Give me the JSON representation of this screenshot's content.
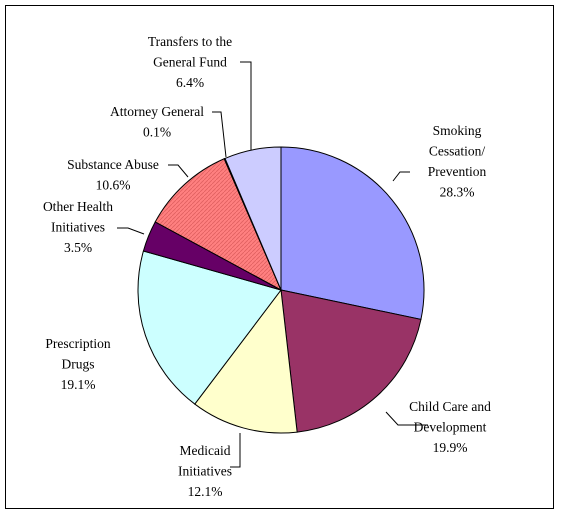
{
  "chart_data": {
    "type": "pie",
    "title": "",
    "slices": [
      {
        "id": "smoking",
        "lines": [
          "Smoking",
          "Cessation/",
          "Prevention"
        ],
        "pct_label": "28.3%",
        "value": 28.3,
        "color": "#9999ff",
        "hatch": false
      },
      {
        "id": "childcare",
        "lines": [
          "Child Care and",
          "Development"
        ],
        "pct_label": "19.9%",
        "value": 19.9,
        "color": "#993366",
        "hatch": false
      },
      {
        "id": "medicaid",
        "lines": [
          "Medicaid",
          "Initiatives"
        ],
        "pct_label": "12.1%",
        "value": 12.1,
        "color": "#ffffcc",
        "hatch": false
      },
      {
        "id": "prescription",
        "lines": [
          "Prescription",
          "Drugs"
        ],
        "pct_label": "19.1%",
        "value": 19.1,
        "color": "#ccffff",
        "hatch": false
      },
      {
        "id": "otherhealth",
        "lines": [
          "Other Health",
          "Initiatives"
        ],
        "pct_label": "3.5%",
        "value": 3.5,
        "color": "#660066",
        "hatch": false
      },
      {
        "id": "substance",
        "lines": [
          "Substance Abuse"
        ],
        "pct_label": "10.6%",
        "value": 10.6,
        "color": "#ff8080",
        "hatch": true
      },
      {
        "id": "attorney",
        "lines": [
          "Attorney General"
        ],
        "pct_label": "0.1%",
        "value": 0.1,
        "color": "#0066cc",
        "hatch": false
      },
      {
        "id": "transfers",
        "lines": [
          "Transfers to the",
          "General Fund"
        ],
        "pct_label": "6.4%",
        "value": 6.4,
        "color": "#ccccff",
        "hatch": false
      }
    ]
  }
}
